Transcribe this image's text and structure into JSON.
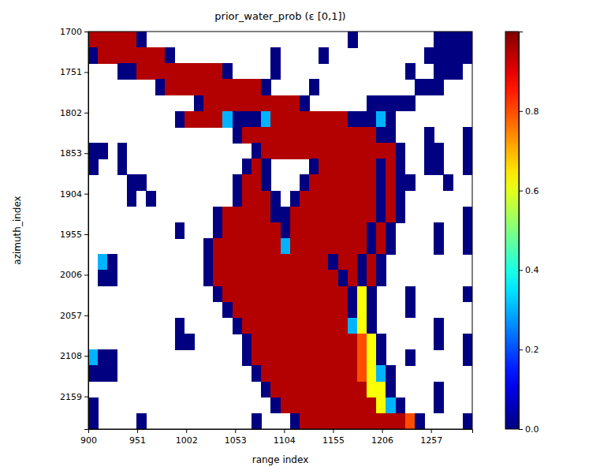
{
  "chart_data": {
    "type": "heatmap",
    "title": "prior_water_prob (ε [0,1])",
    "xlabel": "range index",
    "ylabel": "azimuth_index",
    "color": "jet",
    "xlim": [
      900,
      1300
    ],
    "ylim": [
      2200,
      1700
    ],
    "xticks": [
      900,
      951,
      1002,
      1053,
      1104,
      1155,
      1206,
      1257
    ],
    "yticks": [
      1700,
      1751,
      1802,
      1853,
      1904,
      1955,
      2006,
      2057,
      2108,
      2159
    ],
    "colorbar_lim": [
      0,
      1
    ],
    "colorbar_ticks": [
      {
        "value": 0,
        "label": "0.0"
      },
      {
        "value": 0.2,
        "label": "0.2"
      },
      {
        "value": 0.4,
        "label": "0.4"
      },
      {
        "value": 0.6,
        "label": "0.6"
      },
      {
        "value": 0.8,
        "label": "0.8"
      }
    ],
    "x": [
      905,
      915,
      925,
      935,
      945,
      955,
      965,
      975,
      985,
      995,
      1005,
      1015,
      1025,
      1035,
      1045,
      1055,
      1065,
      1075,
      1085,
      1095,
      1105,
      1115,
      1125,
      1135,
      1145,
      1155,
      1165,
      1175,
      1185,
      1195,
      1205,
      1215,
      1225,
      1235,
      1245,
      1255,
      1265,
      1275,
      1285,
      1295
    ],
    "y": [
      1710,
      1730,
      1750,
      1770,
      1790,
      1810,
      1830,
      1850,
      1870,
      1890,
      1910,
      1930,
      1950,
      1970,
      1990,
      2010,
      2030,
      2050,
      2070,
      2090,
      2110,
      2130,
      2150,
      2170,
      2190
    ],
    "cells": [
      [
        0.95,
        0.95,
        0.95,
        0.95,
        0.95,
        0,
        null,
        null,
        null,
        null,
        null,
        null,
        null,
        null,
        null,
        null,
        null,
        null,
        null,
        null,
        null,
        null,
        null,
        null,
        null,
        null,
        null,
        0,
        null,
        null,
        null,
        null,
        null,
        null,
        null,
        null,
        0,
        0,
        0,
        0
      ],
      [
        0,
        0.95,
        0.95,
        0.95,
        0.95,
        0.95,
        0.95,
        0.95,
        0,
        null,
        null,
        null,
        null,
        null,
        null,
        null,
        null,
        null,
        null,
        0,
        null,
        null,
        null,
        null,
        0,
        null,
        null,
        null,
        null,
        null,
        null,
        null,
        null,
        null,
        null,
        0,
        0,
        0,
        0,
        0
      ],
      [
        null,
        null,
        null,
        0,
        0,
        0.95,
        0.95,
        0.95,
        0.95,
        0.95,
        0.95,
        0.95,
        0.95,
        0.95,
        0,
        null,
        null,
        null,
        null,
        0,
        null,
        null,
        null,
        null,
        null,
        null,
        null,
        null,
        null,
        null,
        null,
        null,
        null,
        0,
        null,
        null,
        0,
        0,
        0,
        null
      ],
      [
        null,
        null,
        null,
        null,
        null,
        null,
        null,
        0,
        0.95,
        0.95,
        0.95,
        0.95,
        0.95,
        0.95,
        0.95,
        0.95,
        0.95,
        0.95,
        0,
        null,
        null,
        null,
        null,
        0,
        null,
        null,
        null,
        null,
        null,
        null,
        null,
        null,
        null,
        null,
        0,
        0,
        0,
        null,
        null,
        null
      ],
      [
        null,
        null,
        null,
        null,
        null,
        null,
        null,
        null,
        null,
        null,
        null,
        0,
        0.95,
        0.95,
        0.95,
        0.95,
        0.95,
        0.95,
        0.95,
        0.95,
        0.95,
        0.95,
        0,
        null,
        null,
        null,
        null,
        null,
        null,
        0,
        0,
        0,
        0,
        0,
        null,
        null,
        null,
        null,
        null,
        null
      ],
      [
        null,
        null,
        null,
        null,
        null,
        null,
        null,
        null,
        null,
        0,
        0.95,
        0.95,
        0.95,
        0.95,
        0.3,
        0,
        0,
        0,
        0.3,
        0.95,
        0.95,
        0.95,
        0.95,
        0.95,
        0.95,
        0.95,
        0.95,
        0,
        0,
        0,
        0.3,
        0,
        null,
        null,
        null,
        null,
        null,
        null,
        null,
        null
      ],
      [
        null,
        null,
        null,
        null,
        null,
        null,
        null,
        null,
        null,
        null,
        null,
        null,
        null,
        null,
        null,
        0,
        0.95,
        0.95,
        0.95,
        0.95,
        0.95,
        0.95,
        0.95,
        0.95,
        0.95,
        0.95,
        0.95,
        0.95,
        0.95,
        0.95,
        0,
        0,
        null,
        null,
        null,
        0,
        null,
        null,
        null,
        0
      ],
      [
        0,
        0,
        null,
        0,
        null,
        null,
        null,
        null,
        null,
        null,
        null,
        null,
        null,
        null,
        null,
        null,
        null,
        0,
        0.95,
        0.95,
        0.95,
        0.95,
        0.95,
        0.95,
        0.95,
        0.95,
        0.95,
        0.95,
        0.95,
        0.95,
        0.95,
        0.95,
        0,
        null,
        null,
        0,
        0,
        null,
        null,
        0
      ],
      [
        0,
        null,
        null,
        0,
        null,
        null,
        null,
        null,
        null,
        null,
        null,
        null,
        null,
        null,
        null,
        null,
        0,
        0.95,
        0,
        null,
        null,
        null,
        null,
        0,
        0.95,
        0.95,
        0.95,
        0.95,
        0.95,
        0.95,
        0,
        0.95,
        0,
        null,
        null,
        0,
        0,
        null,
        null,
        0
      ],
      [
        null,
        null,
        null,
        null,
        0,
        0,
        null,
        null,
        null,
        null,
        null,
        null,
        null,
        null,
        null,
        0,
        0.95,
        0.95,
        0,
        null,
        null,
        null,
        0,
        0.95,
        0.95,
        0.95,
        0.95,
        0.95,
        0.95,
        0.95,
        0,
        0.95,
        0,
        0,
        null,
        null,
        null,
        0,
        null,
        null
      ],
      [
        null,
        null,
        null,
        null,
        0,
        null,
        0,
        null,
        null,
        null,
        null,
        null,
        null,
        null,
        null,
        0,
        0.95,
        0.95,
        0.95,
        0,
        null,
        0,
        0.95,
        0.95,
        0.95,
        0.95,
        0.95,
        0.95,
        0.95,
        0.95,
        0,
        0.95,
        0,
        null,
        null,
        null,
        null,
        null,
        null,
        null
      ],
      [
        null,
        null,
        null,
        null,
        null,
        null,
        null,
        null,
        null,
        null,
        null,
        null,
        null,
        0,
        0.95,
        0.95,
        0.95,
        0.95,
        0.95,
        0,
        0,
        0.95,
        0.95,
        0.95,
        0.95,
        0.95,
        0.95,
        0.95,
        0.95,
        0.95,
        0,
        0.95,
        0,
        null,
        null,
        null,
        null,
        null,
        null,
        0
      ],
      [
        null,
        null,
        null,
        null,
        null,
        null,
        null,
        null,
        null,
        0,
        null,
        null,
        null,
        0,
        0.95,
        0.95,
        0.95,
        0.95,
        0.95,
        0.95,
        0,
        0.95,
        0.95,
        0.95,
        0.95,
        0.95,
        0.95,
        0.95,
        0.95,
        0,
        0.95,
        0,
        null,
        null,
        null,
        null,
        0,
        null,
        null,
        0
      ],
      [
        null,
        null,
        null,
        null,
        null,
        null,
        null,
        null,
        null,
        null,
        null,
        null,
        0,
        0.95,
        0.95,
        0.95,
        0.95,
        0.95,
        0.95,
        0.95,
        0.3,
        0.95,
        0.95,
        0.95,
        0.95,
        0.95,
        0.95,
        0.95,
        0.95,
        0,
        0.95,
        0,
        null,
        null,
        null,
        null,
        0,
        null,
        null,
        0
      ],
      [
        null,
        0.3,
        0,
        null,
        null,
        null,
        null,
        null,
        null,
        null,
        null,
        null,
        0,
        0.95,
        0.95,
        0.95,
        0.95,
        0.95,
        0.95,
        0.95,
        0.95,
        0.95,
        0.95,
        0.95,
        0.95,
        0,
        0.95,
        0.95,
        0,
        0.95,
        0,
        null,
        null,
        null,
        null,
        null,
        null,
        null,
        null,
        null
      ],
      [
        null,
        0,
        0,
        null,
        null,
        null,
        null,
        null,
        null,
        null,
        null,
        null,
        0,
        0.95,
        0.95,
        0.95,
        0.95,
        0.95,
        0.95,
        0.95,
        0.95,
        0.95,
        0.95,
        0.95,
        0.95,
        0.95,
        0,
        0.95,
        0,
        0.95,
        0,
        null,
        null,
        null,
        null,
        null,
        null,
        null,
        null,
        null
      ],
      [
        null,
        null,
        null,
        null,
        null,
        null,
        null,
        null,
        null,
        null,
        null,
        null,
        null,
        0,
        0.95,
        0.95,
        0.95,
        0.95,
        0.95,
        0.95,
        0.95,
        0.95,
        0.95,
        0.95,
        0.95,
        0.95,
        0.95,
        0,
        0.62,
        0,
        null,
        null,
        null,
        0,
        null,
        null,
        null,
        null,
        null,
        0
      ],
      [
        null,
        null,
        null,
        null,
        null,
        null,
        null,
        null,
        null,
        null,
        null,
        null,
        null,
        null,
        0,
        0.95,
        0.95,
        0.95,
        0.95,
        0.95,
        0.95,
        0.95,
        0.95,
        0.95,
        0.95,
        0.95,
        0.95,
        0,
        0.62,
        0,
        null,
        null,
        null,
        0,
        null,
        null,
        null,
        null,
        null,
        null
      ],
      [
        null,
        null,
        null,
        null,
        null,
        null,
        null,
        null,
        null,
        0,
        null,
        null,
        null,
        null,
        null,
        0,
        0.95,
        0.95,
        0.95,
        0.95,
        0.95,
        0.95,
        0.95,
        0.95,
        0.95,
        0.95,
        0.95,
        0.3,
        0.62,
        0,
        null,
        null,
        null,
        null,
        null,
        null,
        0,
        null,
        null,
        null
      ],
      [
        null,
        null,
        null,
        null,
        null,
        null,
        null,
        null,
        null,
        0,
        0,
        null,
        null,
        null,
        null,
        null,
        0,
        0.95,
        0.95,
        0.95,
        0.95,
        0.95,
        0.95,
        0.95,
        0.95,
        0.95,
        0.95,
        0.95,
        0.8,
        0.62,
        0,
        null,
        null,
        null,
        null,
        null,
        0,
        null,
        null,
        0
      ],
      [
        0.3,
        0,
        0,
        null,
        null,
        null,
        null,
        null,
        null,
        null,
        null,
        null,
        null,
        null,
        null,
        null,
        0,
        0.95,
        0.95,
        0.95,
        0.95,
        0.95,
        0.95,
        0.95,
        0.95,
        0.95,
        0.95,
        0.95,
        0.8,
        0.62,
        0,
        null,
        null,
        0,
        null,
        null,
        null,
        null,
        null,
        0
      ],
      [
        0,
        0,
        0,
        null,
        null,
        null,
        null,
        null,
        null,
        null,
        null,
        null,
        null,
        null,
        null,
        null,
        null,
        0,
        0.95,
        0.95,
        0.95,
        0.95,
        0.95,
        0.95,
        0.95,
        0.95,
        0.95,
        0.95,
        0.8,
        0.62,
        0.3,
        0,
        null,
        null,
        null,
        null,
        null,
        null,
        null,
        null
      ],
      [
        null,
        null,
        null,
        null,
        null,
        null,
        null,
        null,
        null,
        null,
        null,
        null,
        null,
        null,
        null,
        null,
        null,
        null,
        0,
        0.95,
        0.95,
        0.95,
        0.95,
        0.95,
        0.95,
        0.95,
        0.95,
        0.95,
        0.95,
        0.62,
        0.62,
        0,
        null,
        null,
        null,
        null,
        0,
        null,
        null,
        null
      ],
      [
        0,
        null,
        null,
        null,
        null,
        null,
        null,
        null,
        null,
        null,
        null,
        null,
        null,
        null,
        null,
        null,
        null,
        null,
        null,
        0,
        0.95,
        0.95,
        0.95,
        0.95,
        0.95,
        0.95,
        0.95,
        0.95,
        0.95,
        0.95,
        0.62,
        0.3,
        0,
        null,
        null,
        null,
        0,
        null,
        null,
        null
      ],
      [
        0,
        null,
        null,
        null,
        null,
        0,
        null,
        null,
        null,
        null,
        null,
        null,
        null,
        null,
        null,
        null,
        null,
        0,
        null,
        null,
        null,
        0,
        0.95,
        0.95,
        0.95,
        0.95,
        0.95,
        0.95,
        0.95,
        0.95,
        0.95,
        0.95,
        0.95,
        0.8,
        0,
        null,
        null,
        null,
        null,
        0
      ]
    ]
  }
}
